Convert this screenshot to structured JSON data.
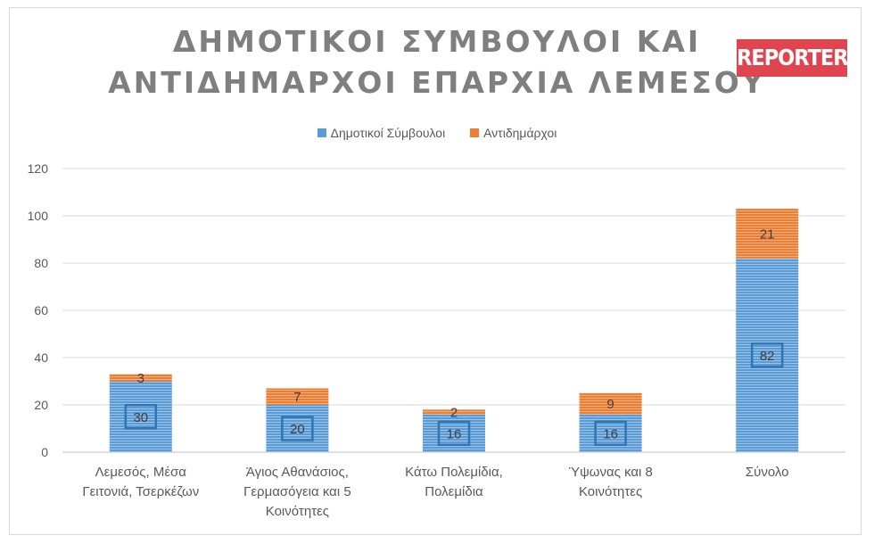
{
  "title_lines": [
    "ΔΗΜΟΤΙΚΟΙ ΣΥΜΒΟΥΛΟΙ ΚΑΙ",
    "ΑΝΤΙΔΗΜΑΡΧΟΙ ΕΠΑΡΧΙΑ ΛΕΜΕΣΟΥ"
  ],
  "logo_text": "REPORTER",
  "colors": {
    "series1": "#5b9bd5",
    "series2": "#ed7d31",
    "logo": "#e0454f",
    "grid": "#d9d9d9"
  },
  "chart_data": {
    "type": "bar",
    "stacked": true,
    "categories": [
      [
        "Λεμεσός, Μέσα",
        "Γειτονιά, Τσερκέζων"
      ],
      [
        "Άγιος Αθανάσιος,",
        "Γερμασόγεια και 5",
        "Κοινότητες"
      ],
      [
        "Κάτω Πολεμίδια,",
        "Πολεμίδια"
      ],
      [
        "Ύψωνας και 8",
        "Κοινότητες"
      ],
      [
        "Σύνολο"
      ]
    ],
    "series": [
      {
        "name": "Δημοτικοί Σύμβουλοι",
        "values": [
          30,
          20,
          16,
          16,
          82
        ]
      },
      {
        "name": "Αντιδημάρχοι",
        "values": [
          3,
          7,
          2,
          9,
          21
        ]
      }
    ],
    "ylim": [
      0,
      120
    ],
    "yticks": [
      0,
      20,
      40,
      60,
      80,
      100,
      120
    ],
    "grid": true,
    "legend": "top"
  }
}
